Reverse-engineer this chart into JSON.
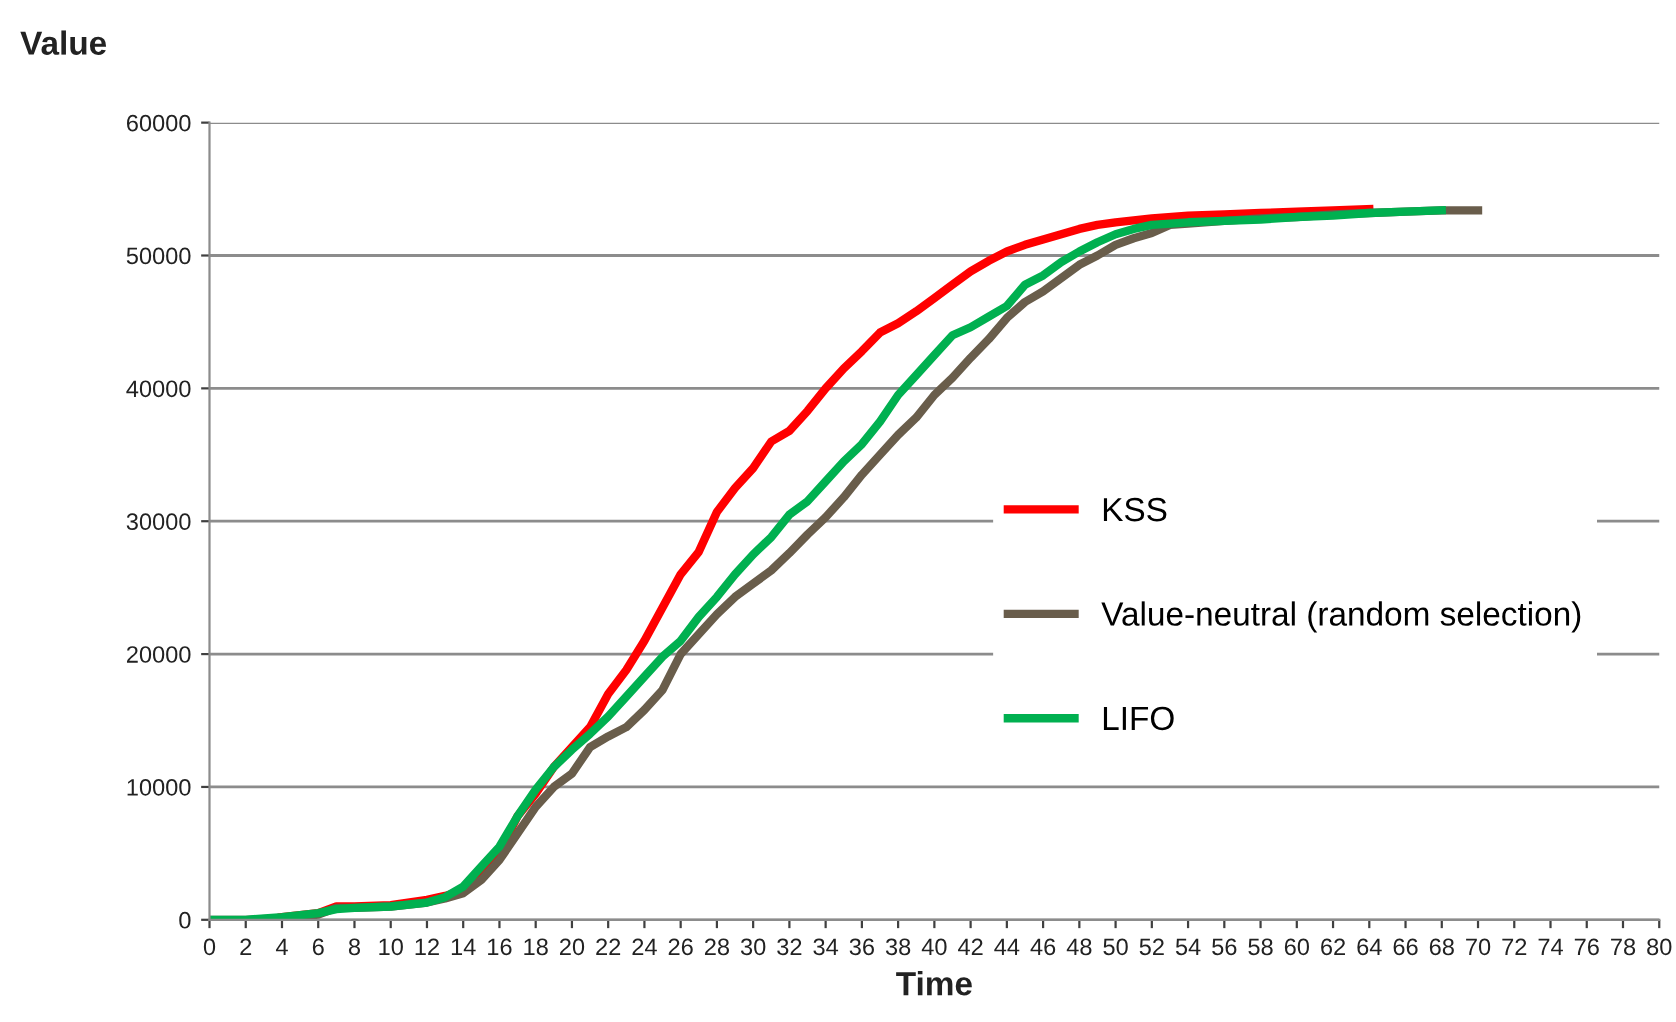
{
  "chart_data": {
    "type": "line",
    "xlabel": "Time",
    "ylabel": "Value",
    "xlim": [
      0,
      80
    ],
    "xticks": [
      0,
      2,
      4,
      6,
      8,
      10,
      12,
      14,
      16,
      18,
      20,
      22,
      24,
      26,
      28,
      30,
      32,
      34,
      36,
      38,
      40,
      42,
      44,
      46,
      48,
      50,
      52,
      54,
      56,
      58,
      60,
      62,
      64,
      66,
      68,
      70,
      72,
      74,
      76,
      78,
      80
    ],
    "ylim": [
      0,
      60000
    ],
    "yticks": [
      0,
      10000,
      20000,
      30000,
      40000,
      50000,
      60000
    ],
    "grid": "y",
    "legend": "right",
    "marker": "none",
    "line_style": "solid",
    "series": [
      {
        "name": "KSS",
        "color": "#ff0000",
        "x": [
          4,
          6,
          7,
          8,
          10,
          12,
          13,
          14,
          15,
          16,
          17,
          18,
          19,
          20,
          21,
          22,
          23,
          24,
          25,
          26,
          27,
          28,
          29,
          30,
          31,
          32,
          33,
          34,
          35,
          36,
          37,
          38,
          39,
          40,
          41,
          42,
          43,
          44,
          45,
          46,
          47,
          48,
          49,
          50,
          52,
          54,
          56,
          58,
          60,
          62,
          64
        ],
        "values": [
          200,
          500,
          1000,
          1000,
          1100,
          1500,
          1800,
          2200,
          3500,
          5000,
          7800,
          9500,
          11500,
          13000,
          14500,
          17000,
          18800,
          21000,
          23500,
          26000,
          27700,
          30700,
          32500,
          34000,
          36000,
          36800,
          38300,
          40000,
          41500,
          42800,
          44200,
          44900,
          45800,
          46800,
          47800,
          48800,
          49600,
          50300,
          50800,
          51200,
          51600,
          52000,
          52300,
          52500,
          52800,
          53000,
          53100,
          53200,
          53300,
          53400,
          53500
        ]
      },
      {
        "name": "Value-neutral (random selection)",
        "color": "#695d4b",
        "x": [
          0,
          2,
          4,
          6,
          7,
          8,
          10,
          12,
          13,
          14,
          15,
          16,
          17,
          18,
          19,
          20,
          21,
          22,
          23,
          24,
          25,
          26,
          27,
          28,
          29,
          30,
          31,
          32,
          33,
          34,
          35,
          36,
          37,
          38,
          39,
          40,
          41,
          42,
          43,
          44,
          45,
          46,
          47,
          48,
          49,
          50,
          51,
          52,
          53,
          54,
          56,
          58,
          60,
          62,
          64,
          66,
          68,
          70
        ],
        "values": [
          0,
          0,
          100,
          400,
          900,
          900,
          1000,
          1300,
          1600,
          2000,
          3000,
          4500,
          6500,
          8500,
          10000,
          11000,
          13000,
          13800,
          14500,
          15800,
          17300,
          20000,
          21500,
          23000,
          24300,
          25300,
          26300,
          27600,
          29000,
          30300,
          31800,
          33500,
          35000,
          36500,
          37800,
          39500,
          40800,
          42300,
          43700,
          45300,
          46500,
          47300,
          48300,
          49300,
          50000,
          50800,
          51300,
          51700,
          52300,
          52400,
          52600,
          52800,
          52900,
          53100,
          53200,
          53300,
          53400,
          53400
        ]
      },
      {
        "name": "LIFO",
        "color": "#00b050",
        "x": [
          0,
          2,
          4,
          6,
          7,
          8,
          10,
          12,
          13,
          14,
          15,
          16,
          17,
          18,
          19,
          20,
          21,
          22,
          23,
          24,
          25,
          26,
          27,
          28,
          29,
          30,
          31,
          32,
          33,
          34,
          35,
          36,
          37,
          38,
          39,
          40,
          41,
          42,
          43,
          44,
          45,
          46,
          47,
          48,
          49,
          50,
          51,
          52,
          54,
          56,
          58,
          60,
          62,
          64,
          66,
          68
        ],
        "values": [
          0,
          0,
          200,
          500,
          800,
          900,
          1000,
          1300,
          1700,
          2500,
          4000,
          5500,
          7800,
          9800,
          11500,
          12800,
          14000,
          15300,
          16800,
          18300,
          19800,
          21000,
          22800,
          24300,
          26000,
          27500,
          28800,
          30500,
          31500,
          33000,
          34500,
          35800,
          37500,
          39500,
          41000,
          42500,
          44000,
          44600,
          45400,
          46200,
          47800,
          48500,
          49500,
          50300,
          51000,
          51600,
          52000,
          52300,
          52500,
          52600,
          52700,
          52900,
          53000,
          53200,
          53300,
          53400
        ]
      }
    ]
  }
}
